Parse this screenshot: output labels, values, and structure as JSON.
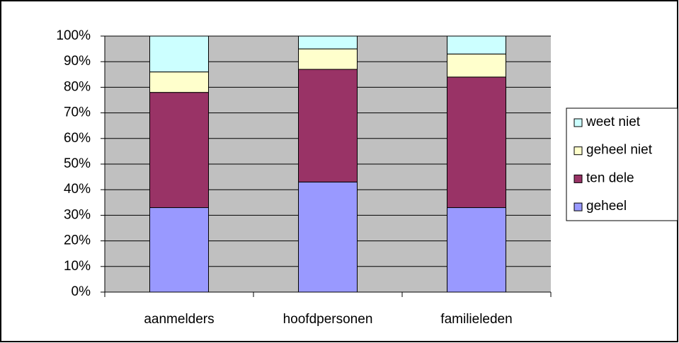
{
  "chart_data": {
    "type": "stacked_bar",
    "categories": [
      "aanmelders",
      "hoofdpersonen",
      "familieleden"
    ],
    "series": [
      {
        "name": "geheel",
        "color": "#9999ff",
        "values": [
          33,
          43,
          33
        ]
      },
      {
        "name": "ten dele",
        "color": "#993366",
        "values": [
          45,
          44,
          51
        ]
      },
      {
        "name": "geheel niet",
        "color": "#ffffcc",
        "values": [
          8,
          8,
          9
        ]
      },
      {
        "name": "weet niet",
        "color": "#ccffff",
        "values": [
          14,
          5,
          7
        ]
      }
    ],
    "ylim": [
      0,
      100
    ],
    "yticks": [
      {
        "value": 0,
        "label": "0%"
      },
      {
        "value": 10,
        "label": "10%"
      },
      {
        "value": 20,
        "label": "20%"
      },
      {
        "value": 30,
        "label": "30%"
      },
      {
        "value": 40,
        "label": "40%"
      },
      {
        "value": 50,
        "label": "50%"
      },
      {
        "value": 60,
        "label": "60%"
      },
      {
        "value": 70,
        "label": "70%"
      },
      {
        "value": 80,
        "label": "80%"
      },
      {
        "value": 90,
        "label": "90%"
      },
      {
        "value": 100,
        "label": "100%"
      }
    ],
    "grid": true,
    "plot_background": "#c0c0c0",
    "legend": "right"
  }
}
